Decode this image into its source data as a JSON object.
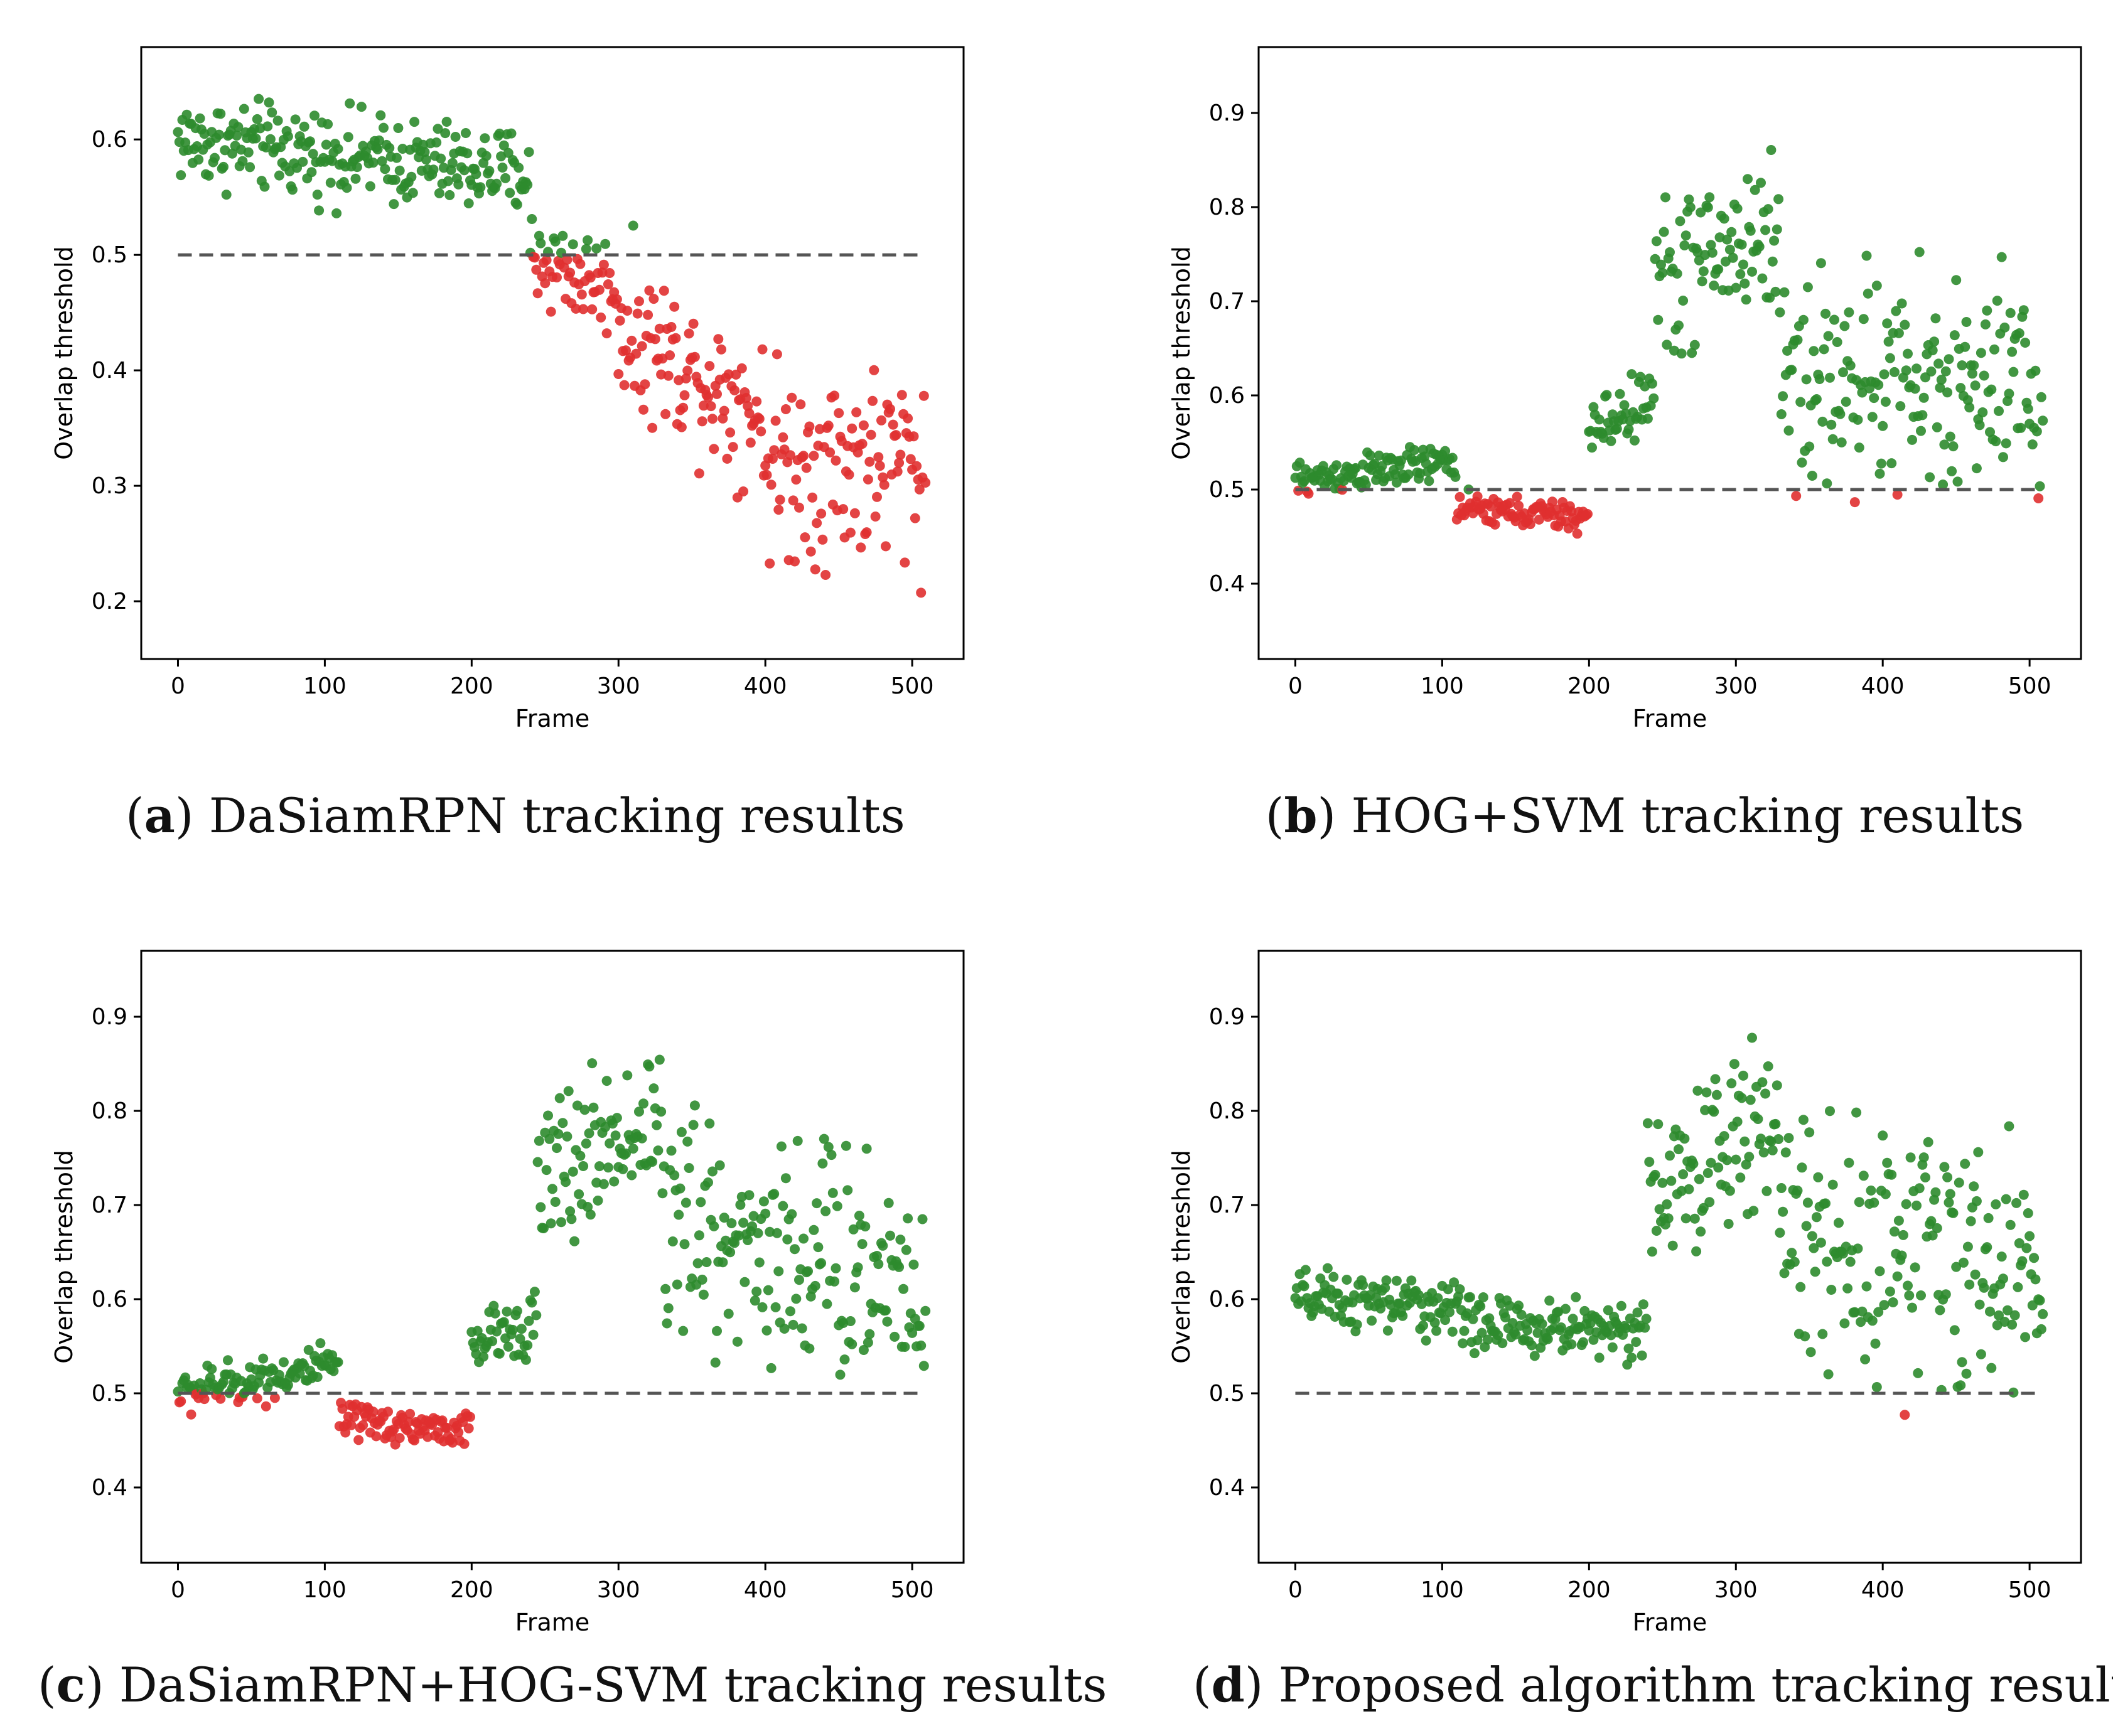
{
  "colors": {
    "above": "#2e8b2e",
    "below": "#e03030",
    "threshold_line": "#555555",
    "axes": "#000000"
  },
  "chart_data": [
    {
      "type": "scatter",
      "panel": "a",
      "caption_letter": "a",
      "caption_text": " DaSiamRPN tracking results",
      "xlabel": "Frame",
      "ylabel": "Overlap threshold",
      "xlim": [
        -25,
        535
      ],
      "ylim": [
        0.15,
        0.68
      ],
      "xticks": [
        0,
        100,
        200,
        300,
        400,
        500
      ],
      "xtick_labels": [
        "0",
        "100",
        "200",
        "300",
        "400",
        "500"
      ],
      "yticks": [
        0.2,
        0.3,
        0.4,
        0.5,
        0.6
      ],
      "ytick_labels": [
        "0.2",
        "0.3",
        "0.4",
        "0.5",
        "0.6"
      ],
      "threshold": 0.5,
      "frames": 510,
      "segments": [
        {
          "x0": 0,
          "x1": 240,
          "y0": 0.6,
          "y1": 0.57,
          "spread": 0.035
        },
        {
          "x0": 240,
          "x1": 300,
          "y0": 0.5,
          "y1": 0.47,
          "spread": 0.04
        },
        {
          "x0": 300,
          "x1": 400,
          "y0": 0.44,
          "y1": 0.36,
          "spread": 0.06
        },
        {
          "x0": 400,
          "x1": 510,
          "y0": 0.32,
          "y1": 0.32,
          "spread": 0.08
        }
      ]
    },
    {
      "type": "scatter",
      "panel": "b",
      "caption_letter": "b",
      "caption_text": " HOG+SVM tracking results",
      "xlabel": "Frame",
      "ylabel": "Overlap threshold",
      "xlim": [
        -25,
        535
      ],
      "ylim": [
        0.32,
        0.97
      ],
      "xticks": [
        0,
        100,
        200,
        300,
        400,
        500
      ],
      "xtick_labels": [
        "0",
        "100",
        "200",
        "300",
        "400",
        "500"
      ],
      "yticks": [
        0.4,
        0.5,
        0.6,
        0.7,
        0.8,
        0.9
      ],
      "ytick_labels": [
        "0.4",
        "0.5",
        "0.6",
        "0.7",
        "0.8",
        "0.9"
      ],
      "threshold": 0.5,
      "frames": 510,
      "segments": [
        {
          "x0": 0,
          "x1": 110,
          "y0": 0.51,
          "y1": 0.53,
          "spread": 0.018
        },
        {
          "x0": 110,
          "x1": 200,
          "y0": 0.48,
          "y1": 0.47,
          "spread": 0.015
        },
        {
          "x0": 200,
          "x1": 245,
          "y0": 0.56,
          "y1": 0.6,
          "spread": 0.03
        },
        {
          "x0": 245,
          "x1": 330,
          "y0": 0.72,
          "y1": 0.78,
          "spread": 0.08
        },
        {
          "x0": 330,
          "x1": 510,
          "y0": 0.62,
          "y1": 0.6,
          "spread": 0.11
        }
      ]
    },
    {
      "type": "scatter",
      "panel": "c",
      "caption_letter": "c",
      "caption_text": " DaSiamRPN+HOG-SVM tracking results",
      "xlabel": "Frame",
      "ylabel": "Overlap threshold",
      "xlim": [
        -25,
        535
      ],
      "ylim": [
        0.32,
        0.97
      ],
      "xticks": [
        0,
        100,
        200,
        300,
        400,
        500
      ],
      "xtick_labels": [
        "0",
        "100",
        "200",
        "300",
        "400",
        "500"
      ],
      "yticks": [
        0.4,
        0.5,
        0.6,
        0.7,
        0.8,
        0.9
      ],
      "ytick_labels": [
        "0.4",
        "0.5",
        "0.6",
        "0.7",
        "0.8",
        "0.9"
      ],
      "threshold": 0.5,
      "frames": 510,
      "segments": [
        {
          "x0": 0,
          "x1": 110,
          "y0": 0.5,
          "y1": 0.53,
          "spread": 0.022
        },
        {
          "x0": 110,
          "x1": 200,
          "y0": 0.47,
          "y1": 0.46,
          "spread": 0.018
        },
        {
          "x0": 200,
          "x1": 245,
          "y0": 0.55,
          "y1": 0.58,
          "spread": 0.03
        },
        {
          "x0": 245,
          "x1": 330,
          "y0": 0.72,
          "y1": 0.8,
          "spread": 0.08
        },
        {
          "x0": 330,
          "x1": 510,
          "y0": 0.68,
          "y1": 0.62,
          "spread": 0.12
        }
      ]
    },
    {
      "type": "scatter",
      "panel": "d",
      "caption_letter": "d",
      "caption_text": " Proposed algorithm tracking results",
      "xlabel": "Frame",
      "ylabel": "Overlap threshold",
      "xlim": [
        -25,
        535
      ],
      "ylim": [
        0.32,
        0.97
      ],
      "xticks": [
        0,
        100,
        200,
        300,
        400,
        500
      ],
      "xtick_labels": [
        "0",
        "100",
        "200",
        "300",
        "400",
        "500"
      ],
      "yticks": [
        0.4,
        0.5,
        0.6,
        0.7,
        0.8,
        0.9
      ],
      "ytick_labels": [
        "0.4",
        "0.5",
        "0.6",
        "0.7",
        "0.8",
        "0.9"
      ],
      "threshold": 0.5,
      "frames": 510,
      "segments": [
        {
          "x0": 0,
          "x1": 120,
          "y0": 0.6,
          "y1": 0.59,
          "spread": 0.028
        },
        {
          "x0": 120,
          "x1": 240,
          "y0": 0.57,
          "y1": 0.57,
          "spread": 0.03
        },
        {
          "x0": 240,
          "x1": 330,
          "y0": 0.7,
          "y1": 0.8,
          "spread": 0.08
        },
        {
          "x0": 330,
          "x1": 510,
          "y0": 0.68,
          "y1": 0.62,
          "spread": 0.12
        }
      ]
    }
  ]
}
